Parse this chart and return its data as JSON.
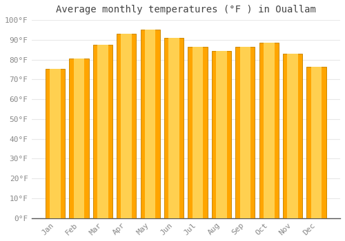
{
  "title": "Average monthly temperatures (°F ) in Ouallam",
  "months": [
    "Jan",
    "Feb",
    "Mar",
    "Apr",
    "May",
    "Jun",
    "Jul",
    "Aug",
    "Sep",
    "Oct",
    "Nov",
    "Dec"
  ],
  "values": [
    75.5,
    80.5,
    87.5,
    93,
    95,
    91,
    86.5,
    84.5,
    86.5,
    88.5,
    83,
    76.5
  ],
  "bar_color_face": "#FFA500",
  "bar_color_light": "#FFD050",
  "bar_color_edge": "#CC8800",
  "ylim": [
    0,
    100
  ],
  "yticks": [
    0,
    10,
    20,
    30,
    40,
    50,
    60,
    70,
    80,
    90,
    100
  ],
  "ytick_labels": [
    "0°F",
    "10°F",
    "20°F",
    "30°F",
    "40°F",
    "50°F",
    "60°F",
    "70°F",
    "80°F",
    "90°F",
    "100°F"
  ],
  "background_color": "#ffffff",
  "plot_bg_color": "#ffffff",
  "grid_color": "#e8e8e8",
  "title_fontsize": 10,
  "tick_fontsize": 8,
  "figsize": [
    5.0,
    3.5
  ],
  "dpi": 100,
  "bar_width": 0.82
}
